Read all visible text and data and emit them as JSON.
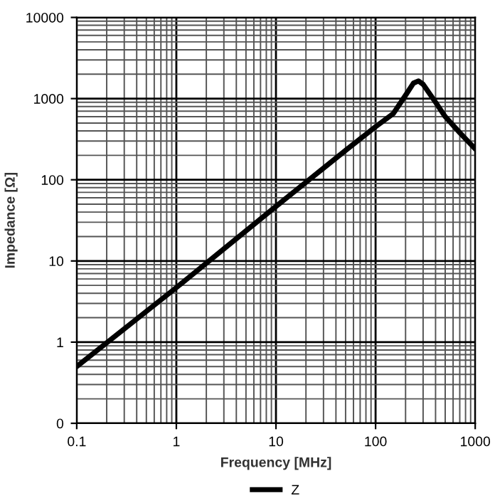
{
  "chart_data": {
    "type": "line",
    "xlabel": "Frequency [MHz]",
    "ylabel": "Impedance [Ω]",
    "log": "xy",
    "grid": true,
    "legend": "bottom",
    "line_style": "solid",
    "marker": "none",
    "xlim": [
      0.1,
      1000
    ],
    "xticks": [
      0.1,
      1,
      10,
      100,
      1000
    ],
    "ylim": [
      0.1,
      10000
    ],
    "yticks": [
      {
        "value": 0.1,
        "label": "0"
      },
      1,
      10,
      100,
      1000,
      10000
    ],
    "series": [
      {
        "name": "Z",
        "color": "#000000",
        "x": [
          0.1,
          1,
          10,
          50,
          100,
          150,
          200,
          240,
          270,
          300,
          400,
          500,
          700,
          1000
        ],
        "values": [
          0.5,
          4.7,
          47,
          230,
          450,
          650,
          1100,
          1550,
          1650,
          1500,
          900,
          600,
          380,
          240
        ]
      }
    ]
  }
}
